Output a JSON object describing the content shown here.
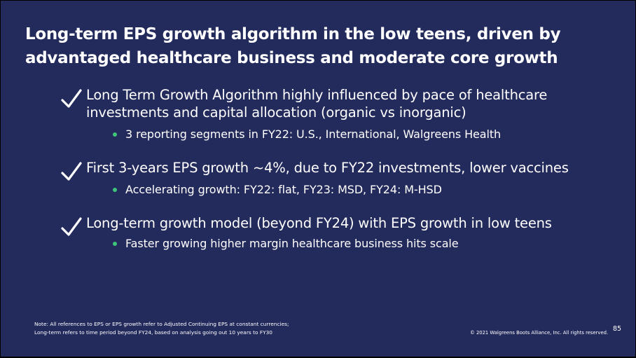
{
  "slide": {
    "title": "Long-term EPS growth algorithm in the low teens, driven by advantaged healthcare business and moderate core growth",
    "bullets": [
      {
        "icon": "check-icon",
        "text": "Long Term Growth Algorithm highly influenced by pace of healthcare investments and capital allocation (organic vs inorganic)",
        "sub": "3 reporting segments in FY22: U.S., International, Walgreens Health"
      },
      {
        "icon": "check-icon",
        "text": "First 3-years EPS growth ~4%, due to FY22 investments, lower vaccines",
        "sub": "Accelerating growth: FY22: flat, FY23: MSD, FY24: M-HSD"
      },
      {
        "icon": "check-icon",
        "text": "Long-term growth model (beyond FY24) with EPS growth in low teens",
        "sub": "Faster growing higher margin healthcare business hits scale"
      }
    ],
    "footnote": {
      "line1": "Note: All references to EPS or EPS growth  refer to Adjusted Continuing EPS at constant currencies;",
      "line2": "Long-term refers to time period beyond FY24, based on analysis going out 10 years to FY30"
    },
    "copyright": "© 2021 Walgreens Boots Alliance, Inc. All rights reserved.",
    "page_number": "85"
  },
  "colors": {
    "background": "#232a5c",
    "text": "#ffffff",
    "sub_bullet_dot": "#3fc57a"
  }
}
